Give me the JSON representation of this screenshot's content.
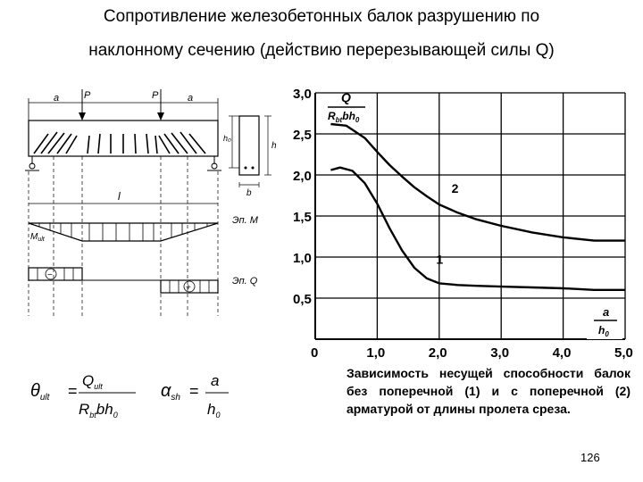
{
  "title_line1": "Сопротивление железобетонных балок разрушению по",
  "title_line2": "наклонному сечению (действию перерезывающей силы Q)",
  "page_number": "126",
  "beam_diagram": {
    "dim_a_left": "a",
    "dim_a_right": "a",
    "load_left": "P",
    "load_right": "P",
    "span_label": "l",
    "moment_label": "Эп. M",
    "moment_ult_label": "M",
    "moment_ult_sub": "ult",
    "shear_label": "Эп. Q",
    "shear_minus": "−",
    "shear_plus": "+",
    "section_h0": "h₀",
    "section_h": "h",
    "section_b": "b"
  },
  "formulas": {
    "theta": "θ",
    "theta_sub": "ult",
    "q": "Q",
    "q_sub": "ult",
    "r": "R",
    "r_sub": "bt",
    "bh": "bh",
    "zero": "0",
    "eq": "=",
    "alpha": "α",
    "alpha_sub": "sh",
    "a": "a",
    "h": "h"
  },
  "chart_data": {
    "type": "line",
    "x_ticks": [
      "0",
      "1,0",
      "2,0",
      "3,0",
      "4,0",
      "5,0"
    ],
    "y_ticks": [
      "0,5",
      "1,0",
      "1,5",
      "2,0",
      "2,5",
      "3,0"
    ],
    "xlim": [
      0,
      5.0
    ],
    "ylim": [
      0,
      3.0
    ],
    "ylabel_num": "Q",
    "ylabel_den": "R",
    "ylabel_den_sub": "bt",
    "ylabel_den_rest": "bh",
    "ylabel_den_sub2": "0",
    "xlabel_num": "a",
    "xlabel_den": "h",
    "xlabel_den_sub": "0",
    "grid": true,
    "series": [
      {
        "name": "1",
        "x": [
          0.25,
          0.4,
          0.6,
          0.8,
          1.0,
          1.2,
          1.4,
          1.6,
          1.8,
          2.0,
          2.3,
          2.6,
          3.0,
          3.5,
          4.0,
          4.5,
          5.0
        ],
        "y": [
          2.06,
          2.09,
          2.05,
          1.9,
          1.65,
          1.35,
          1.08,
          0.87,
          0.74,
          0.68,
          0.66,
          0.65,
          0.64,
          0.63,
          0.62,
          0.6,
          0.6
        ]
      },
      {
        "name": "2",
        "x": [
          0.25,
          0.5,
          0.8,
          1.0,
          1.2,
          1.4,
          1.6,
          1.8,
          2.0,
          2.3,
          2.6,
          3.0,
          3.5,
          4.0,
          4.5,
          5.0
        ],
        "y": [
          2.62,
          2.6,
          2.45,
          2.28,
          2.12,
          1.98,
          1.85,
          1.74,
          1.64,
          1.54,
          1.46,
          1.38,
          1.3,
          1.24,
          1.2,
          1.2
        ]
      }
    ]
  },
  "caption": "Зависимость несущей способности балок без поперечной (1) и с поперечной (2) арматурой от длины пролета среза."
}
